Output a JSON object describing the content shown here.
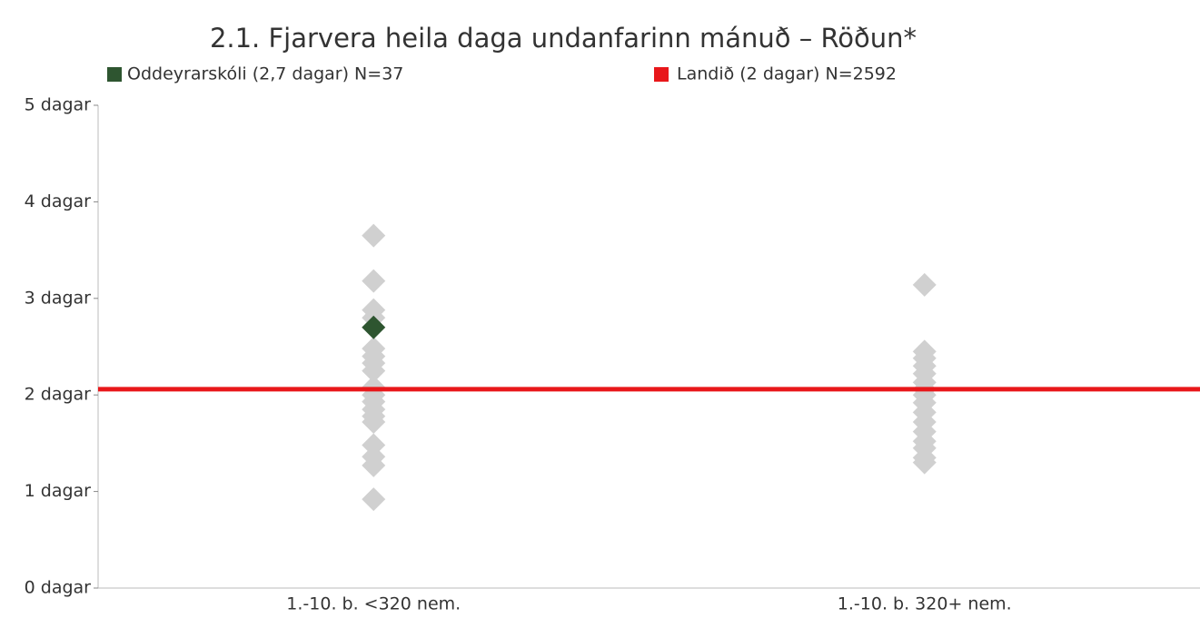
{
  "chart_data": {
    "type": "strip",
    "title": "2.1. Fjarvera heila daga undanfarinn mánuð – Röðun*",
    "categories": [
      "1.-10. b. <320 nem.",
      "1.-10. b. 320+ nem."
    ],
    "others": {
      "color": "#d0d0d0",
      "values": [
        [
          3.65,
          3.18,
          2.88,
          2.8,
          2.48,
          2.4,
          2.33,
          2.25,
          2.08,
          2.0,
          1.93,
          1.85,
          1.78,
          1.72,
          1.48,
          1.36,
          1.27,
          0.92
        ],
        [
          3.14,
          2.45,
          2.38,
          2.3,
          2.22,
          2.13,
          2.06,
          2.0,
          1.92,
          1.82,
          1.72,
          1.62,
          1.52,
          1.45,
          1.35,
          1.3
        ]
      ]
    },
    "series": [
      {
        "name": "Oddeyrarskóli (2,7 dagar) N=37",
        "color": "#2e5530",
        "values": [
          2.7,
          null
        ]
      }
    ],
    "reference_line": {
      "name": "Landið (2 dagar) N=2592",
      "color": "#e8171a",
      "value": 2.06
    },
    "ylim": [
      0,
      5
    ],
    "yticks": [
      {
        "value": 0,
        "label": "0 dagar"
      },
      {
        "value": 1,
        "label": "1 dagar"
      },
      {
        "value": 2,
        "label": "2 dagar"
      },
      {
        "value": 3,
        "label": "3 dagar"
      },
      {
        "value": 4,
        "label": "4 dagar"
      },
      {
        "value": 5,
        "label": "5 dagar"
      }
    ]
  }
}
